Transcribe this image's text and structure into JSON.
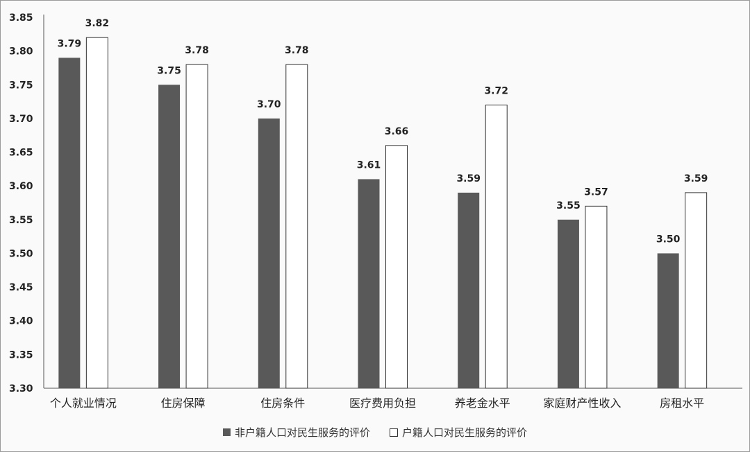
{
  "chart_data": {
    "type": "bar",
    "categories": [
      "个人就业情况",
      "住房保障",
      "住房条件",
      "医疗费用负担",
      "养老金水平",
      "家庭财产性收入",
      "房租水平"
    ],
    "series": [
      {
        "name": "非户籍人口对民生服务的评价",
        "values": [
          3.79,
          3.75,
          3.7,
          3.61,
          3.59,
          3.55,
          3.5
        ],
        "color": "#595959",
        "fill": "solid"
      },
      {
        "name": "户籍人口对民生服务的评价",
        "values": [
          3.82,
          3.78,
          3.78,
          3.66,
          3.72,
          3.57,
          3.59
        ],
        "color": "#ffffff",
        "fill": "outline"
      }
    ],
    "yticks": [
      "3.30",
      "3.35",
      "3.40",
      "3.45",
      "3.50",
      "3.55",
      "3.60",
      "3.65",
      "3.70",
      "3.75",
      "3.80",
      "3.85"
    ],
    "ylim": [
      3.3,
      3.85
    ],
    "grid": false,
    "legend_position": "bottom",
    "title": "",
    "xlabel": "",
    "ylabel": ""
  }
}
